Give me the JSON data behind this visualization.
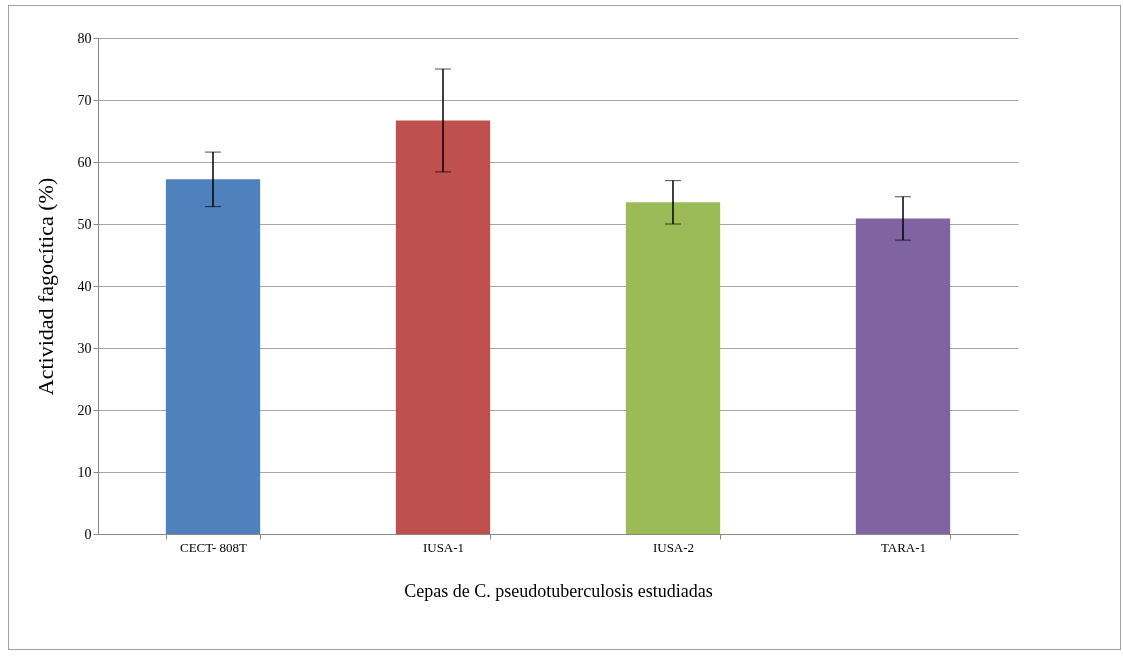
{
  "chart_data": {
    "type": "bar",
    "categories": [
      "CECT- 808T",
      "IUSA-1",
      "IUSA-2",
      "TARA-1"
    ],
    "values": [
      57.2,
      66.7,
      53.5,
      50.9
    ],
    "colors": [
      "#4f81bd",
      "#c0504d",
      "#9bbb59",
      "#8064a2"
    ],
    "errors": [
      4.4,
      8.3,
      3.5,
      3.5
    ],
    "ylim": [
      0,
      80
    ],
    "yticks": [
      0,
      10,
      20,
      30,
      40,
      50,
      60,
      70,
      80
    ],
    "grid": "y",
    "xlabel": "Cepas de C. pseudotuberculosis estudiadas",
    "ylabel": "Actividad fagocítica (%)"
  }
}
